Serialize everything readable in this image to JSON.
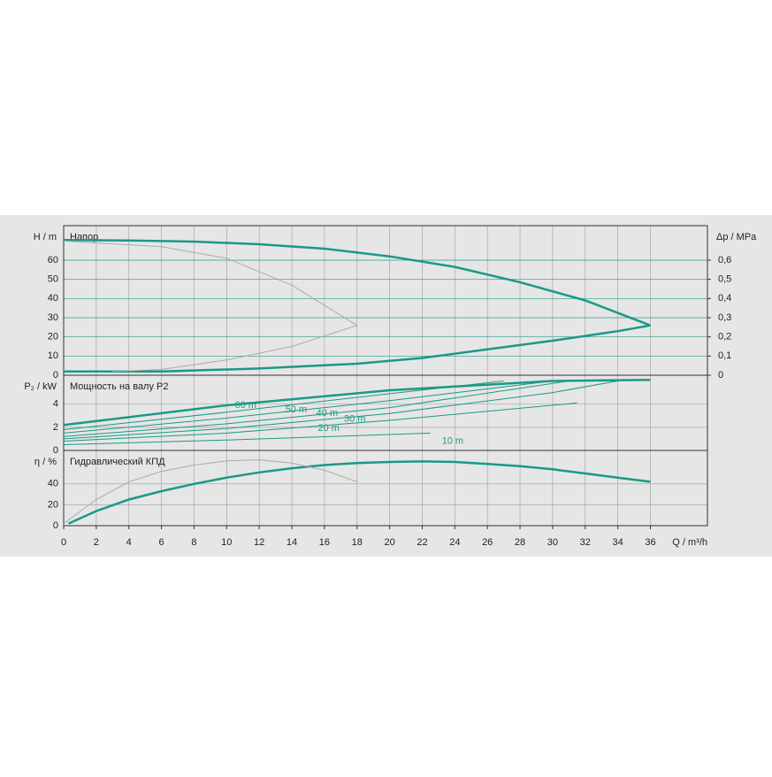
{
  "chart_data": [
    {
      "type": "line",
      "title": "Напор",
      "ylabel": "H / m",
      "y2label": "Δp / MPa",
      "xlim": [
        0,
        39.5
      ],
      "ylim": [
        0,
        78
      ],
      "yticks": [
        0,
        10,
        20,
        30,
        40,
        50,
        60
      ],
      "y2lim": [
        0,
        0.78
      ],
      "y2ticks": [
        0,
        {
          "value": 0.1,
          "label": "0,1"
        },
        {
          "value": 0.2,
          "label": "0,2"
        },
        {
          "value": 0.3,
          "label": "0,3"
        },
        {
          "value": 0.4,
          "label": "0,4"
        },
        {
          "value": 0.5,
          "label": "0,5"
        },
        {
          "value": 0.6,
          "label": "0,6"
        }
      ],
      "grid": true,
      "series": [
        {
          "color": "#1a9986",
          "line_width": 2.5,
          "x": [
            0,
            4,
            8,
            12,
            16,
            20,
            24,
            28,
            32,
            36
          ],
          "values": [
            70.5,
            70.3,
            69.7,
            68.3,
            66,
            62,
            56.5,
            48.5,
            39,
            26
          ]
        },
        {
          "color": "#1a9986",
          "line_width": 2.5,
          "x": [
            0,
            6,
            12,
            18,
            22,
            26,
            30,
            34,
            36
          ],
          "values": [
            2,
            2,
            3.5,
            6,
            9,
            13.5,
            18,
            23,
            26
          ]
        },
        {
          "color": "#aaaaaa",
          "line_width": 1,
          "x": [
            0,
            6,
            10,
            14,
            18,
            14,
            10,
            6,
            3
          ],
          "values": [
            70,
            67,
            61,
            47,
            26,
            15,
            8,
            3,
            2
          ]
        }
      ]
    },
    {
      "type": "line",
      "title": "Мощность на валу P2",
      "ylabel": "P₂ / kW",
      "xlim": [
        0,
        39.5
      ],
      "ylim": [
        0,
        6.5
      ],
      "yticks": [
        0,
        2,
        4
      ],
      "grid": true,
      "series": [
        {
          "color": "#1a9986",
          "line_width": 2.5,
          "x": [
            0,
            10,
            20,
            30,
            36
          ],
          "values": [
            2.2,
            3.9,
            5.2,
            6.0,
            6.1
          ]
        },
        {
          "name": "60 m",
          "color": "#1a9986",
          "line_width": 1,
          "x": [
            0,
            10,
            20,
            27
          ],
          "values": [
            1.8,
            3.3,
            4.9,
            6.0
          ]
        },
        {
          "name": "50 m",
          "color": "#1a9986",
          "line_width": 1,
          "x": [
            0,
            10,
            20,
            30
          ],
          "values": [
            1.5,
            2.8,
            4.3,
            6.0
          ]
        },
        {
          "name": "40 m",
          "color": "#1a9986",
          "line_width": 1,
          "x": [
            0,
            10,
            20,
            31
          ],
          "values": [
            1.2,
            2.3,
            3.7,
            6.0
          ]
        },
        {
          "name": "30 m",
          "color": "#1a9986",
          "line_width": 1,
          "x": [
            0,
            10,
            20,
            30,
            34
          ],
          "values": [
            1.0,
            1.9,
            3.2,
            5.0,
            6.0
          ]
        },
        {
          "name": "20 m",
          "color": "#1a9986",
          "line_width": 1,
          "x": [
            0,
            10,
            20,
            31.5
          ],
          "values": [
            0.8,
            1.5,
            2.6,
            4.1
          ]
        },
        {
          "name": "10 m",
          "color": "#1a9986",
          "line_width": 1,
          "x": [
            0,
            10,
            22.5
          ],
          "values": [
            0.5,
            0.9,
            1.5
          ]
        }
      ]
    },
    {
      "type": "line",
      "title": "Гидравлический КПД",
      "ylabel": "η / %",
      "xlabel": "Q / m³/h",
      "xlim": [
        0,
        39.5
      ],
      "ylim": [
        0,
        72
      ],
      "yticks": [
        0,
        20,
        40
      ],
      "xticks": [
        0,
        2,
        4,
        6,
        8,
        10,
        12,
        14,
        16,
        18,
        20,
        22,
        24,
        26,
        28,
        30,
        32,
        34,
        36
      ],
      "grid": true,
      "series": [
        {
          "color": "#1a9986",
          "line_width": 2.5,
          "x": [
            0.3,
            2,
            4,
            6,
            8,
            10,
            12,
            14,
            16,
            18,
            20,
            22,
            24,
            26,
            28,
            30,
            32,
            34,
            36
          ],
          "values": [
            2,
            14,
            25,
            33,
            40,
            46,
            51,
            55,
            58,
            60,
            61,
            61.5,
            61,
            59,
            57,
            54,
            50,
            46,
            42
          ]
        },
        {
          "color": "#aaaaaa",
          "line_width": 1,
          "x": [
            0,
            2,
            4,
            6,
            8,
            10,
            12,
            14,
            16,
            18
          ],
          "values": [
            2,
            25,
            42,
            52,
            58,
            62,
            63,
            60,
            53,
            42
          ]
        }
      ]
    }
  ]
}
